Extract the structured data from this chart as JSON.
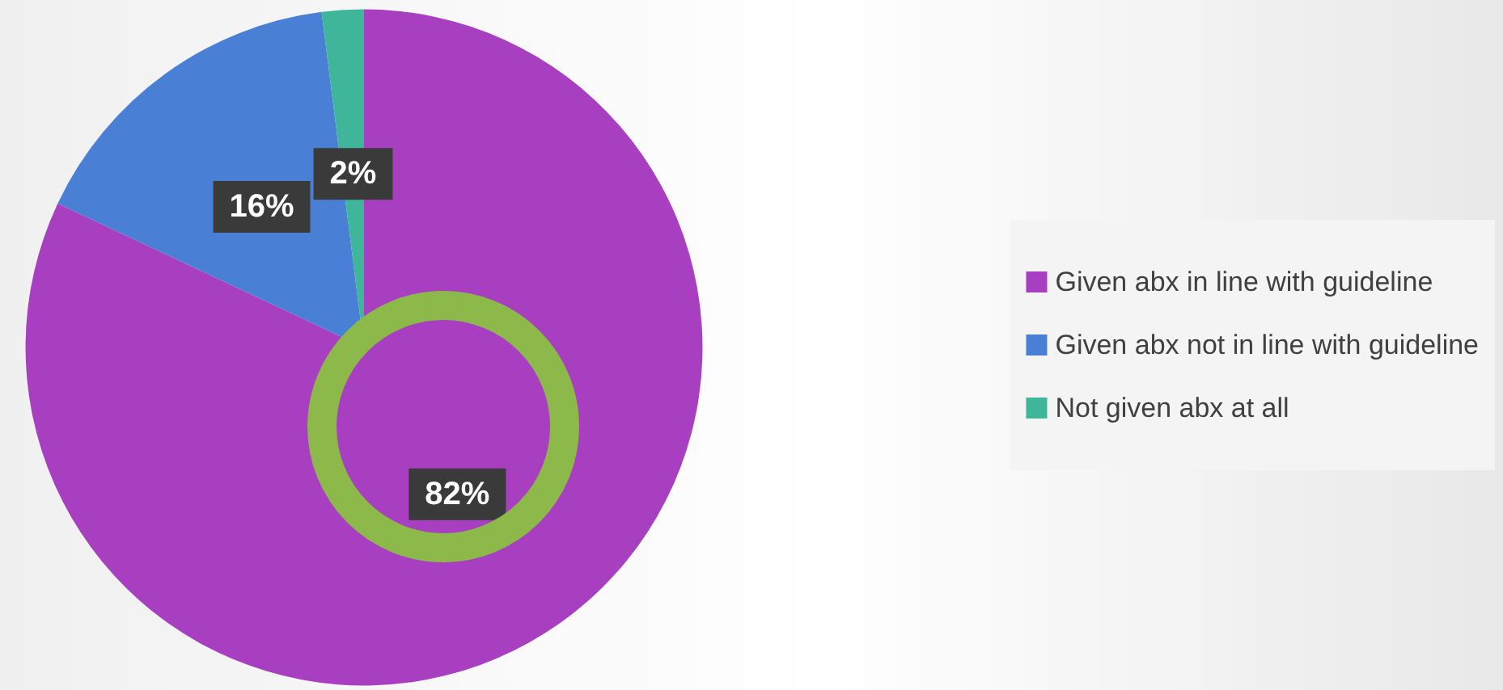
{
  "chart_data": {
    "type": "pie",
    "categories": [
      "Given abx in line with guideline",
      "Given abx not in line with guideline",
      "Not given abx at all"
    ],
    "values": [
      82,
      16,
      2
    ],
    "colors": [
      "#a83fc0",
      "#4a7fd6",
      "#3fb59a"
    ],
    "value_labels": [
      "82%",
      "16%",
      "2%"
    ],
    "legend": "right"
  }
}
